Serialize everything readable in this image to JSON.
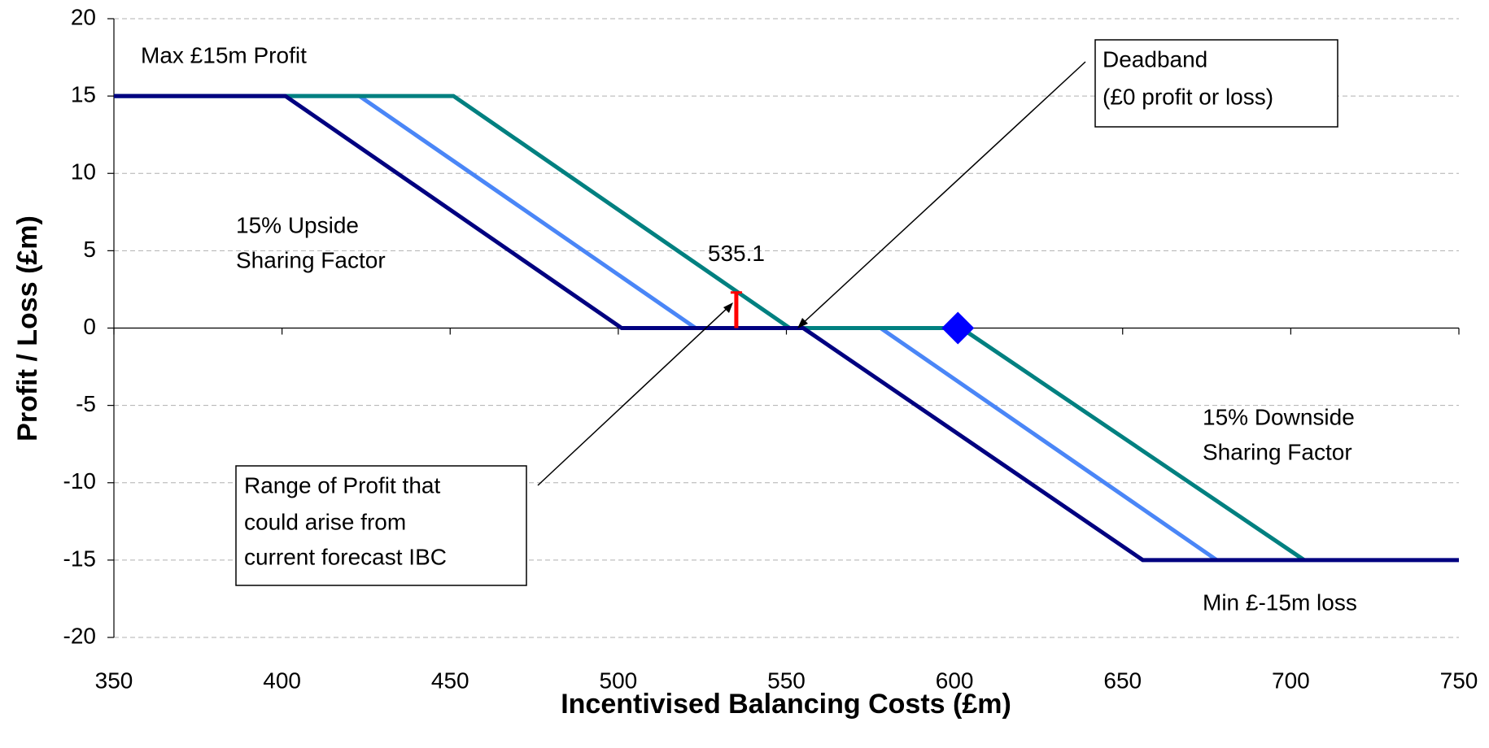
{
  "chart_data": {
    "type": "line",
    "xlabel": "Incentivised Balancing Costs (£m)",
    "ylabel": "Profit / Loss (£m)",
    "xlim": [
      350,
      750
    ],
    "xticks": [
      350,
      400,
      450,
      500,
      550,
      600,
      650,
      700,
      750
    ],
    "ylim": [
      -20,
      20
    ],
    "yticks": [
      -20,
      -15,
      -10,
      -5,
      0,
      5,
      10,
      15,
      20
    ],
    "grid": true,
    "series": [
      {
        "color": "#4a86f7",
        "x": [
          350,
          423,
          523,
          578,
          678
        ],
        "values": [
          15,
          15,
          0,
          0,
          -15
        ]
      },
      {
        "color": "#008080",
        "x": [
          350,
          451,
          551,
          602,
          704
        ],
        "values": [
          15,
          15,
          0,
          0,
          -15
        ]
      },
      {
        "color": "#000080",
        "x": [
          350,
          401,
          501,
          555,
          656,
          750
        ],
        "values": [
          15,
          15,
          0,
          0,
          -15,
          -15
        ]
      }
    ],
    "marker": {
      "color": "#0000ff",
      "x": 601,
      "y": 0
    },
    "range": {
      "color": "#ff0000",
      "x": 535.1,
      "low": 0,
      "high": 2.3
    },
    "annotations": {
      "max_profit": "Max £15m Profit",
      "upside": [
        "15% Upside",
        "Sharing Factor"
      ],
      "downside": [
        "15% Downside",
        "Sharing Factor"
      ],
      "min_loss": "Min £-15m loss",
      "deadband": [
        "Deadband",
        "(£0 profit or loss)"
      ],
      "range_note": [
        "Range of Profit that",
        "could arise from",
        "current forecast IBC"
      ]
    }
  }
}
